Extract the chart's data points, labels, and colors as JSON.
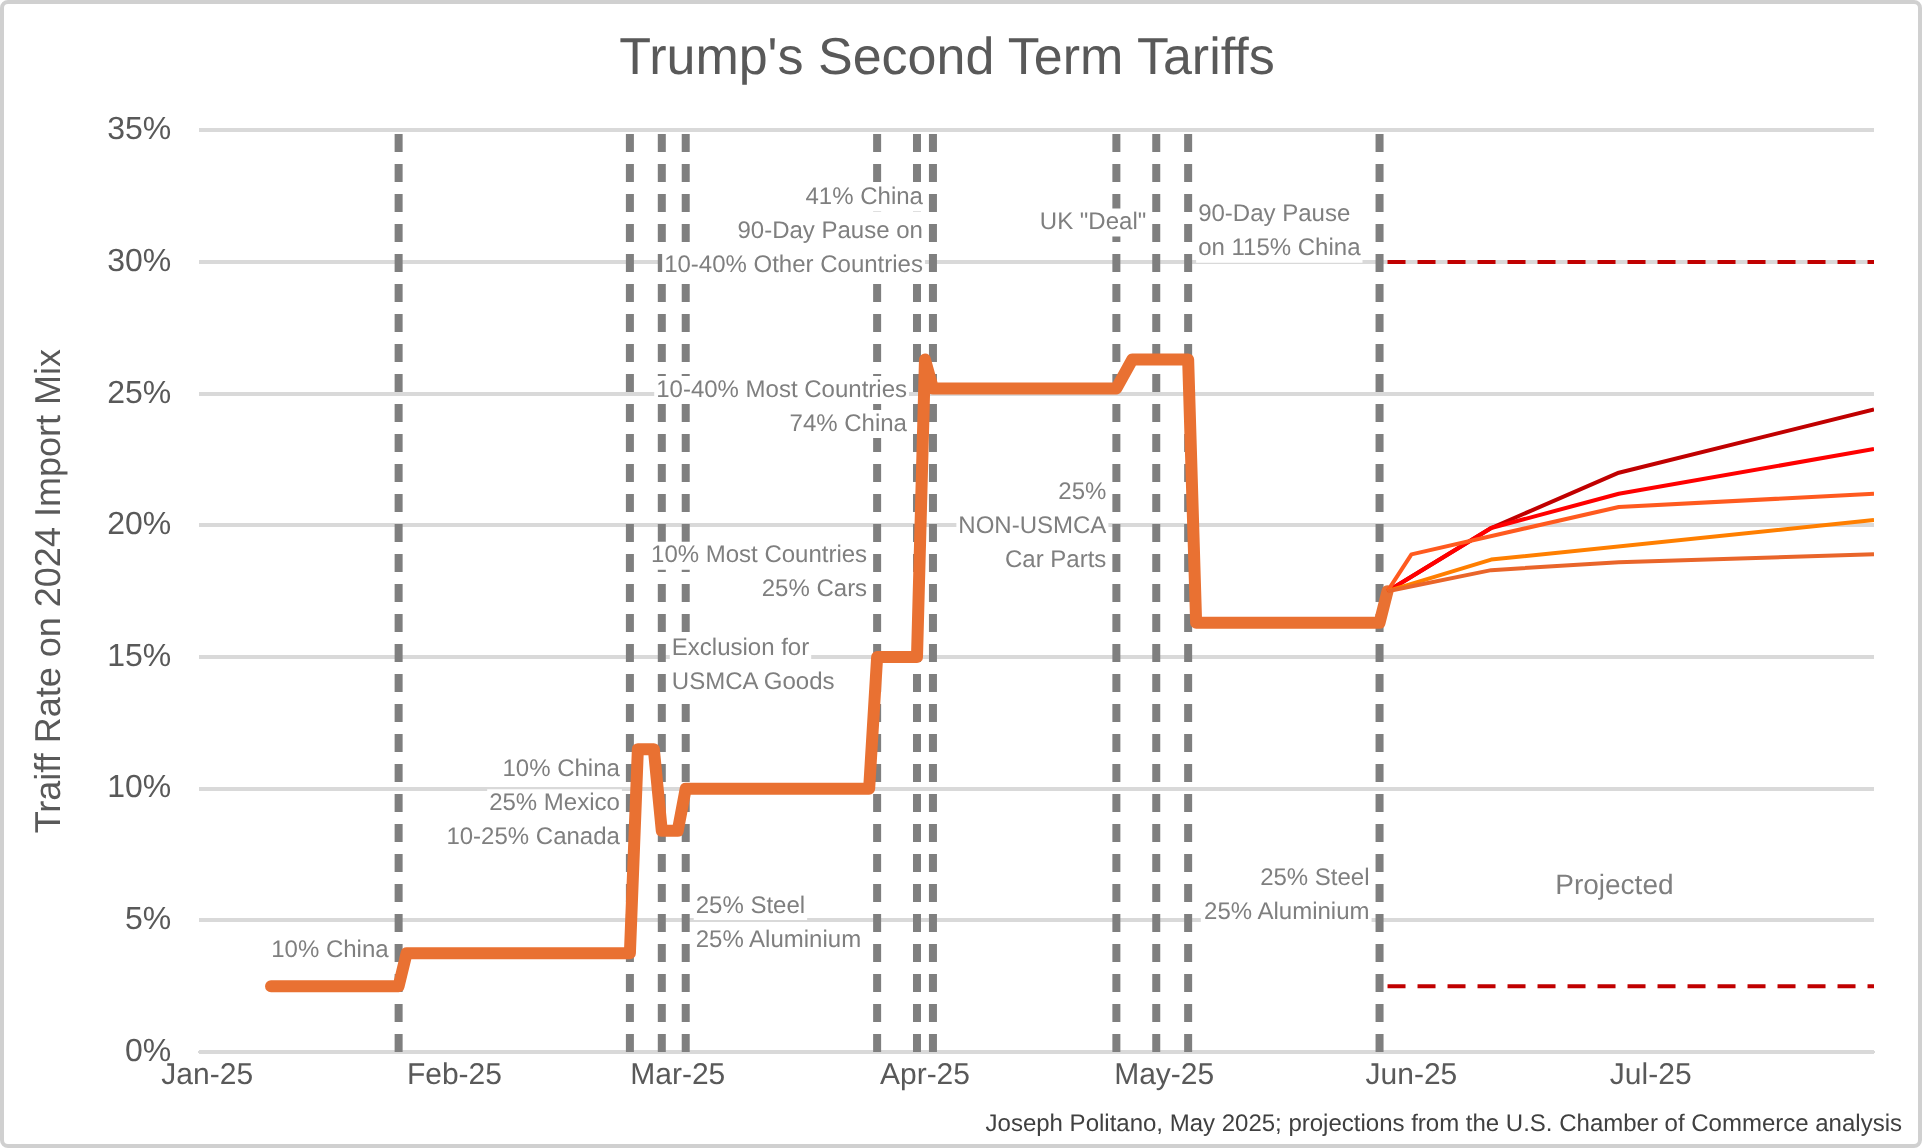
{
  "chart_data": {
    "type": "line",
    "title": "Trump's Second Term Tariffs",
    "ylabel": "Traiff Rate on 2024 Import Mix",
    "xlim": [
      "2024-12-31",
      "2025-07-29"
    ],
    "xticks": [
      {
        "value": "2025-01-01",
        "label": "Jan-25"
      },
      {
        "value": "2025-02-01",
        "label": "Feb-25"
      },
      {
        "value": "2025-03-01",
        "label": "Mar-25"
      },
      {
        "value": "2025-04-01",
        "label": "Apr-25"
      },
      {
        "value": "2025-05-01",
        "label": "May-25"
      },
      {
        "value": "2025-06-01",
        "label": "Jun-25"
      },
      {
        "value": "2025-07-01",
        "label": "Jul-25"
      }
    ],
    "ylim": [
      0,
      35
    ],
    "yticks": [
      {
        "value": 0,
        "label": "0%"
      },
      {
        "value": 5,
        "label": "5%"
      },
      {
        "value": 10,
        "label": "10%"
      },
      {
        "value": 15,
        "label": "15%"
      },
      {
        "value": 20,
        "label": "20%"
      },
      {
        "value": 25,
        "label": "25%"
      },
      {
        "value": 30,
        "label": "30%"
      },
      {
        "value": 35,
        "label": "35%"
      }
    ],
    "grid": "y",
    "legend": false,
    "marker": "none",
    "series": [
      {
        "type": "line",
        "color": "#e97132",
        "line_style": "solid",
        "x": [
          "2025-01-09",
          "2025-01-25",
          "2025-01-26",
          "2025-02-23",
          "2025-02-24",
          "2025-02-26",
          "2025-02-27",
          "2025-03-01",
          "2025-03-02",
          "2025-03-25",
          "2025-03-26",
          "2025-03-31",
          "2025-04-01",
          "2025-04-02",
          "2025-04-25",
          "2025-04-27",
          "2025-05-04",
          "2025-05-05",
          "2025-05-28",
          "2025-05-29"
        ],
        "values": [
          2.5,
          2.5,
          3.75,
          3.75,
          11.5,
          11.5,
          8.4,
          8.4,
          10,
          10,
          15,
          15,
          26.3,
          25.2,
          25.2,
          26.3,
          26.3,
          16.3,
          16.3,
          17.5
        ]
      },
      {
        "type": "line",
        "color": "#c00000",
        "line_style": "solid",
        "x": [
          "2025-05-29",
          "2025-06-11",
          "2025-06-27",
          "2025-07-29"
        ],
        "values": [
          17.5,
          19.9,
          22,
          24.4
        ]
      },
      {
        "type": "line",
        "color": "#ff0000",
        "line_style": "solid",
        "x": [
          "2025-05-29",
          "2025-06-11",
          "2025-06-27",
          "2025-07-29"
        ],
        "values": [
          17.5,
          19.9,
          21.2,
          22.9
        ]
      },
      {
        "type": "line",
        "color": "#ff5a1f",
        "line_style": "solid",
        "x": [
          "2025-05-29",
          "2025-06-01",
          "2025-06-27",
          "2025-07-29"
        ],
        "values": [
          17.5,
          18.9,
          20.7,
          21.2
        ]
      },
      {
        "type": "line",
        "color": "#ff7f00",
        "line_style": "solid",
        "x": [
          "2025-05-29",
          "2025-06-11",
          "2025-07-29"
        ],
        "values": [
          17.5,
          18.7,
          20.2
        ]
      },
      {
        "type": "line",
        "color": "#e9652a",
        "line_style": "solid",
        "x": [
          "2025-05-29",
          "2025-06-11",
          "2025-06-27",
          "2025-07-29"
        ],
        "values": [
          17.5,
          18.3,
          18.6,
          18.9
        ]
      },
      {
        "type": "line",
        "color": "#c00000",
        "line_style": "dashed",
        "x": [
          "2025-05-29",
          "2025-07-29"
        ],
        "values": [
          30,
          30
        ]
      },
      {
        "type": "line",
        "color": "#c00000",
        "line_style": "dashed",
        "x": [
          "2025-05-29",
          "2025-07-29"
        ],
        "values": [
          2.5,
          2.5
        ]
      }
    ],
    "ref_lines": [
      {
        "axis": "x",
        "value": "2025-01-25",
        "color": "#7f7f7f",
        "line_style": "dashed",
        "label": "10% China"
      },
      {
        "axis": "x",
        "value": "2025-02-23",
        "color": "#7f7f7f",
        "line_style": "dashed",
        "label": "10% China\n25% Mexico\n10-25% Canada"
      },
      {
        "axis": "x",
        "value": "2025-02-27",
        "color": "#7f7f7f",
        "line_style": "dashed",
        "label": "Exclusion for\nUSMCA Goods"
      },
      {
        "axis": "x",
        "value": "2025-03-02",
        "color": "#7f7f7f",
        "line_style": "dashed",
        "label": "25% Steel\n25% Aluminium"
      },
      {
        "axis": "x",
        "value": "2025-03-26",
        "color": "#7f7f7f",
        "line_style": "dashed",
        "label": "10% Most Countries\n25% Cars"
      },
      {
        "axis": "x",
        "value": "2025-03-31",
        "color": "#7f7f7f",
        "line_style": "dashed",
        "label": "10-40% Most Countries\n74% China"
      },
      {
        "axis": "x",
        "value": "2025-04-02",
        "color": "#7f7f7f",
        "line_style": "dashed",
        "label": "41% China\n90-Day Pause on\n10-40% Other Countries"
      },
      {
        "axis": "x",
        "value": "2025-04-25",
        "color": "#7f7f7f",
        "line_style": "dashed",
        "label": "25%\nNON-USMCA\nCar Parts"
      },
      {
        "axis": "x",
        "value": "2025-04-30",
        "color": "#7f7f7f",
        "line_style": "dashed",
        "label": "UK \"Deal\""
      },
      {
        "axis": "x",
        "value": "2025-05-04",
        "color": "#7f7f7f",
        "line_style": "dashed",
        "label": "90-Day Pause\non 115% China"
      },
      {
        "axis": "x",
        "value": "2025-05-28",
        "color": "#7f7f7f",
        "line_style": "dashed",
        "label": "25% Steel\n25% Aluminium"
      }
    ],
    "annotations": [
      "Projected",
      "Joseph Politano, May 2025; projections from the U.S. Chamber of Commerce analysis"
    ]
  }
}
